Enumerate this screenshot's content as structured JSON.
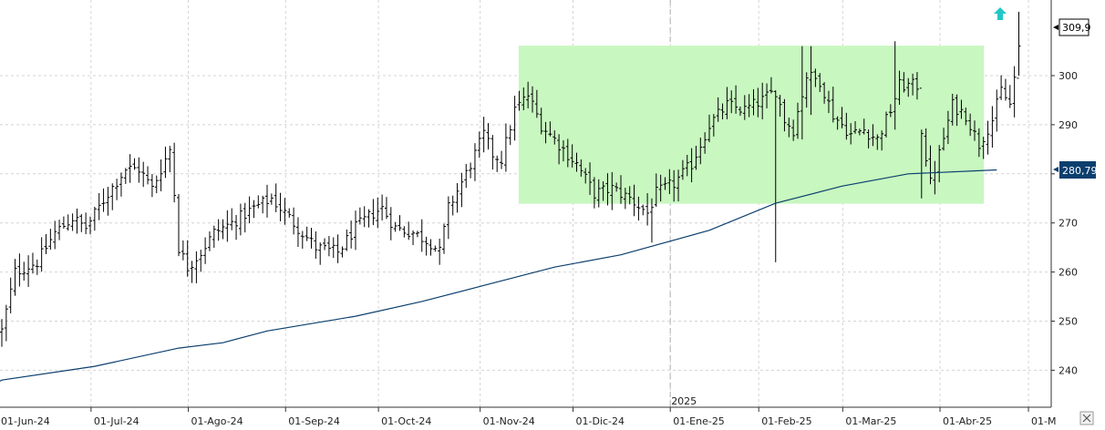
{
  "chart_data": {
    "type": "ohlc",
    "title": "",
    "xlabel": "",
    "ylabel": "",
    "ylim": [
      233,
      314
    ],
    "y_ticks": [
      "240",
      "250",
      "260",
      "270",
      "280",
      "290",
      "300"
    ],
    "x_ticks": [
      "01-Jun-24",
      "01-Jul-24",
      "01-Ago-24",
      "01-Sep-24",
      "01-Oct-24",
      "01-Nov-24",
      "01-Dic-24",
      "01-Ene-25",
      "01-Feb-25",
      "01-Mar-25",
      "01-Abr-25",
      "01-M"
    ],
    "year_label": "2025",
    "last_price_label": "309,9",
    "ma_label": "280,79",
    "last_price": 309.9,
    "ma_value": 280.79,
    "grid": true,
    "colors": {
      "bars": "#000000",
      "moving_average": "#0b3f6e",
      "range_box": "#c8f7c0",
      "ma_label_bg": "#0b3f6e",
      "arrow": "#22c7c7",
      "grid": "#d4d4d4"
    },
    "range_box": {
      "x_start": 117,
      "x_end": 222,
      "y_low": 274,
      "y_high": 306
    },
    "range_box_note": "x values are trading-session indices from 1-Jun-24",
    "moving_average": [
      [
        0,
        238.0
      ],
      [
        21,
        240.8
      ],
      [
        40,
        244.5
      ],
      [
        50,
        245.6
      ],
      [
        60,
        248.0
      ],
      [
        80,
        251.0
      ],
      [
        95,
        254.0
      ],
      [
        110,
        257.5
      ],
      [
        125,
        261.0
      ],
      [
        140,
        263.5
      ],
      [
        160,
        268.5
      ],
      [
        175,
        274.0
      ],
      [
        190,
        277.5
      ],
      [
        205,
        280.0
      ],
      [
        225,
        280.8
      ]
    ],
    "price_path": [
      [
        0,
        248
      ],
      [
        3,
        260
      ],
      [
        8,
        262
      ],
      [
        12,
        268
      ],
      [
        16,
        271
      ],
      [
        19,
        269
      ],
      [
        24,
        276
      ],
      [
        28,
        281
      ],
      [
        31,
        281
      ],
      [
        34,
        277
      ],
      [
        38,
        285
      ],
      [
        39,
        276
      ],
      [
        40,
        265
      ],
      [
        42,
        261
      ],
      [
        45,
        264
      ],
      [
        48,
        268
      ],
      [
        52,
        270
      ],
      [
        57,
        273
      ],
      [
        61,
        275
      ],
      [
        64,
        272
      ],
      [
        68,
        268
      ],
      [
        71,
        265
      ],
      [
        76,
        264
      ],
      [
        80,
        269
      ],
      [
        84,
        272
      ],
      [
        86,
        273
      ],
      [
        89,
        269
      ],
      [
        93,
        268
      ],
      [
        97,
        266
      ],
      [
        99,
        264
      ],
      [
        101,
        273
      ],
      [
        105,
        280
      ],
      [
        109,
        288
      ],
      [
        111,
        284
      ],
      [
        113,
        283
      ],
      [
        116,
        293
      ],
      [
        119,
        296
      ],
      [
        122,
        290
      ],
      [
        126,
        286
      ],
      [
        130,
        282
      ],
      [
        134,
        276
      ],
      [
        138,
        277
      ],
      [
        142,
        275
      ],
      [
        146,
        272
      ],
      [
        148,
        276
      ],
      [
        152,
        278
      ],
      [
        156,
        282
      ],
      [
        160,
        290
      ],
      [
        164,
        294
      ],
      [
        168,
        293
      ],
      [
        172,
        295
      ],
      [
        175,
        297
      ],
      [
        177,
        291
      ],
      [
        179,
        289
      ],
      [
        182,
        300
      ],
      [
        185,
        299
      ],
      [
        188,
        292
      ],
      [
        192,
        288
      ],
      [
        195,
        289
      ],
      [
        198,
        287
      ],
      [
        201,
        293
      ],
      [
        203,
        298
      ],
      [
        207,
        298
      ],
      [
        208,
        289
      ],
      [
        210,
        278
      ],
      [
        212,
        284
      ],
      [
        215,
        294
      ],
      [
        218,
        292
      ],
      [
        221,
        286
      ],
      [
        224,
        291
      ],
      [
        226,
        297
      ],
      [
        228,
        294
      ],
      [
        230,
        305
      ]
    ],
    "extreme_bars": [
      {
        "i": 175,
        "low": 262,
        "high": 297
      },
      {
        "i": 181,
        "low": 287,
        "high": 306
      },
      {
        "i": 183,
        "low": 292,
        "high": 306
      },
      {
        "i": 202,
        "low": 289,
        "high": 307
      },
      {
        "i": 208,
        "low": 275,
        "high": 289
      },
      {
        "i": 147,
        "low": 266,
        "high": 275
      },
      {
        "i": 230,
        "low": 300,
        "high": 313
      }
    ]
  }
}
